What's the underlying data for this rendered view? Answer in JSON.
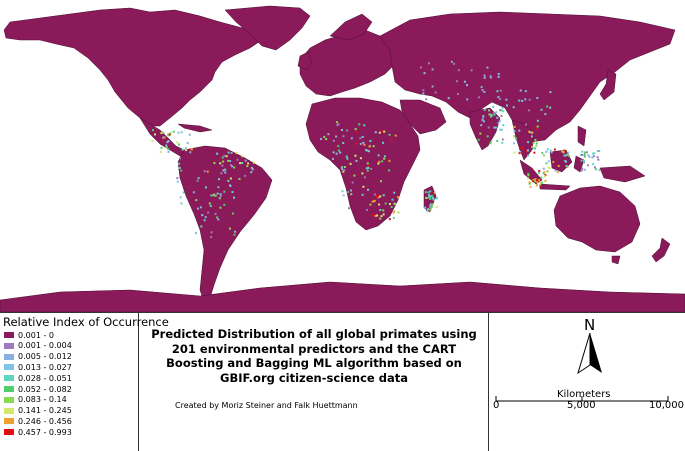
{
  "map": {
    "land_color": "#8b1a5a",
    "ocean_color": "#ffffff",
    "border_color": "#4a0e30"
  },
  "legend": {
    "title": "Relative Index of Occurrence",
    "classes": [
      {
        "label": "0.001 - 0",
        "color": "#8b1a5a"
      },
      {
        "label": "0.001 - 0.004",
        "color": "#9e7bbf"
      },
      {
        "label": "0.005 - 0.012",
        "color": "#8ab0e0"
      },
      {
        "label": "0.013 - 0.027",
        "color": "#7ec4e6"
      },
      {
        "label": "0.028 - 0.051",
        "color": "#5fd6c2"
      },
      {
        "label": "0.052 - 0.082",
        "color": "#4fd06a"
      },
      {
        "label": "0.083 - 0.14",
        "color": "#86dc4e"
      },
      {
        "label": "0.141 - 0.245",
        "color": "#d4e86a"
      },
      {
        "label": "0.246 - 0.456",
        "color": "#f0a030"
      },
      {
        "label": "0.457 - 0.993",
        "color": "#e01010"
      }
    ]
  },
  "title": {
    "text": "Predicted Distribution of all global primates using 201 environmental predictors and the CART Boosting and Bagging ML algorithm based on GBIF.org citizen-science data",
    "credit": "Created by Moriz Steiner and Falk Huettmann"
  },
  "north_arrow": {
    "label": "N",
    "icon": "north-arrow-icon"
  },
  "scale_bar": {
    "unit_label": "Kilometers",
    "ticks": [
      "0",
      "5,000",
      "10,000"
    ]
  }
}
